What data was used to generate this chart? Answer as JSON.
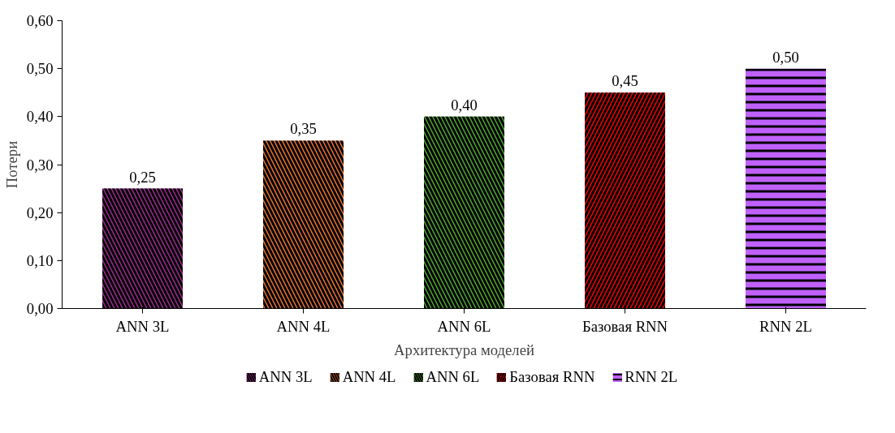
{
  "chart_data": {
    "type": "bar",
    "xlabel": "Архитектура моделей",
    "ylabel": "Потери",
    "categories": [
      "ANN 3L",
      "ANN 4L",
      "ANN 6L",
      "Базовая RNN",
      "RNN 2L"
    ],
    "series": [
      {
        "name": "ANN 3L",
        "color": "#a02b93",
        "values": [
          0.25,
          null,
          null,
          null,
          null
        ],
        "value_labels": [
          "0,25",
          null,
          null,
          null,
          null
        ]
      },
      {
        "name": "ANN 4L",
        "color": "#e97132",
        "values": [
          null,
          0.35,
          null,
          null,
          null
        ],
        "value_labels": [
          null,
          "0,35",
          null,
          null,
          null
        ]
      },
      {
        "name": "ANN 6L",
        "color": "#4ea72e",
        "values": [
          null,
          null,
          0.4,
          null,
          null
        ],
        "value_labels": [
          null,
          null,
          "0,40",
          null,
          null
        ]
      },
      {
        "name": "Базовая RNN",
        "color": "#ff0000",
        "values": [
          null,
          null,
          null,
          0.45,
          null
        ],
        "value_labels": [
          null,
          null,
          null,
          "0,45",
          null
        ]
      },
      {
        "name": "RNN 2L",
        "color": "#c061ff",
        "values": [
          null,
          null,
          null,
          null,
          0.5
        ],
        "value_labels": [
          null,
          null,
          null,
          null,
          "0,50"
        ]
      }
    ],
    "stacked": true,
    "ylim": [
      0,
      0.6
    ],
    "yticks": [
      {
        "value": 0,
        "label": "0,00"
      },
      {
        "value": 0.1,
        "label": "0,10"
      },
      {
        "value": 0.2,
        "label": "0,20"
      },
      {
        "value": 0.3,
        "label": "0,30"
      },
      {
        "value": 0.4,
        "label": "0,40"
      },
      {
        "value": 0.5,
        "label": "0,50"
      },
      {
        "value": 0.6,
        "label": "0,60"
      }
    ],
    "grid": false,
    "legend": "bottom"
  }
}
